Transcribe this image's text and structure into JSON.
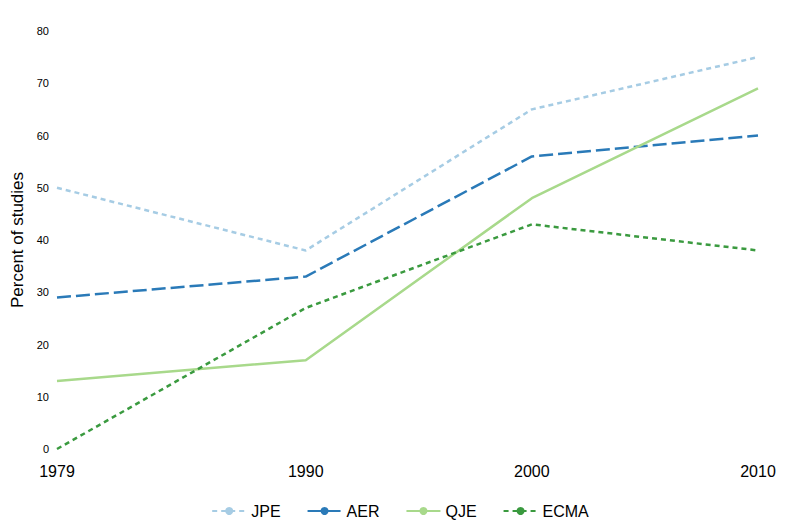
{
  "chart_data": {
    "type": "line",
    "y_label": "Percent of studies",
    "x": [
      1979,
      1990,
      2000,
      2010
    ],
    "xlim": [
      1979,
      2010
    ],
    "xticks": [
      1979,
      1990,
      2000,
      2010
    ],
    "ylim": [
      0,
      80
    ],
    "yticks": [
      0,
      10,
      20,
      30,
      40,
      50,
      60,
      70,
      80
    ],
    "grid": false,
    "legend": "bottom",
    "series": [
      {
        "name": "JPE",
        "color": "#a6cce4",
        "line_style": "dashed",
        "values": [
          50,
          38,
          65,
          75
        ]
      },
      {
        "name": "AER",
        "color": "#2a7ab8",
        "line_style": "long_dash",
        "values": [
          29,
          33,
          56,
          60
        ]
      },
      {
        "name": "QJE",
        "color": "#a8d98b",
        "line_style": "solid",
        "values": [
          13,
          17,
          48,
          69
        ]
      },
      {
        "name": "ECMA",
        "color": "#3a9a3f",
        "line_style": "dashed",
        "values": [
          0,
          27,
          43,
          38
        ]
      }
    ]
  }
}
